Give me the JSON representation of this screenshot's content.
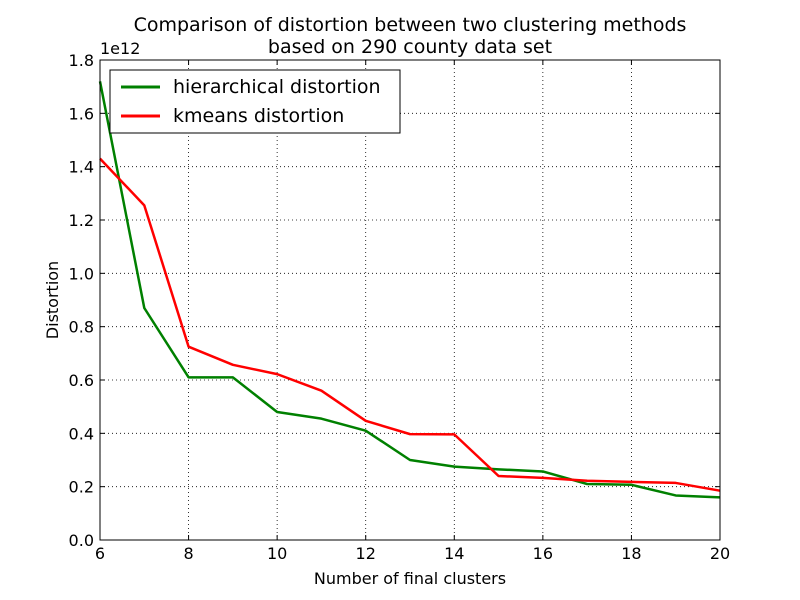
{
  "chart_data": {
    "type": "line",
    "title_line1": "Comparison of distortion between two clustering methods",
    "title_line2": "based on 290 county data set",
    "xlabel": "Number of final clusters",
    "ylabel": "Distortion",
    "y_multiplier_label": "1e12",
    "xlim": [
      6,
      20
    ],
    "ylim": [
      0.0,
      1.8
    ],
    "xticks": [
      6,
      8,
      10,
      12,
      14,
      16,
      18,
      20
    ],
    "xtick_labels": [
      "6",
      "8",
      "10",
      "12",
      "14",
      "16",
      "18",
      "20"
    ],
    "yticks": [
      0.0,
      0.2,
      0.4,
      0.6,
      0.8,
      1.0,
      1.2,
      1.4,
      1.6,
      1.8
    ],
    "ytick_labels": [
      "0.0",
      "0.2",
      "0.4",
      "0.6",
      "0.8",
      "1.0",
      "1.2",
      "1.4",
      "1.6",
      "1.8"
    ],
    "grid": true,
    "legend_position": "top-left",
    "x": [
      6,
      7,
      8,
      9,
      10,
      11,
      12,
      13,
      14,
      15,
      16,
      17,
      18,
      19,
      20
    ],
    "series": [
      {
        "name": "hierarchical distortion",
        "color": "#008000",
        "values": [
          1.72,
          0.87,
          0.61,
          0.61,
          0.48,
          0.455,
          0.41,
          0.3,
          0.275,
          0.265,
          0.257,
          0.21,
          0.207,
          0.167,
          0.16
        ]
      },
      {
        "name": "kmeans distortion",
        "color": "#ff0000",
        "values": [
          1.43,
          1.255,
          0.725,
          0.657,
          0.622,
          0.56,
          0.447,
          0.397,
          0.396,
          0.24,
          0.233,
          0.222,
          0.218,
          0.214,
          0.185
        ]
      }
    ]
  }
}
